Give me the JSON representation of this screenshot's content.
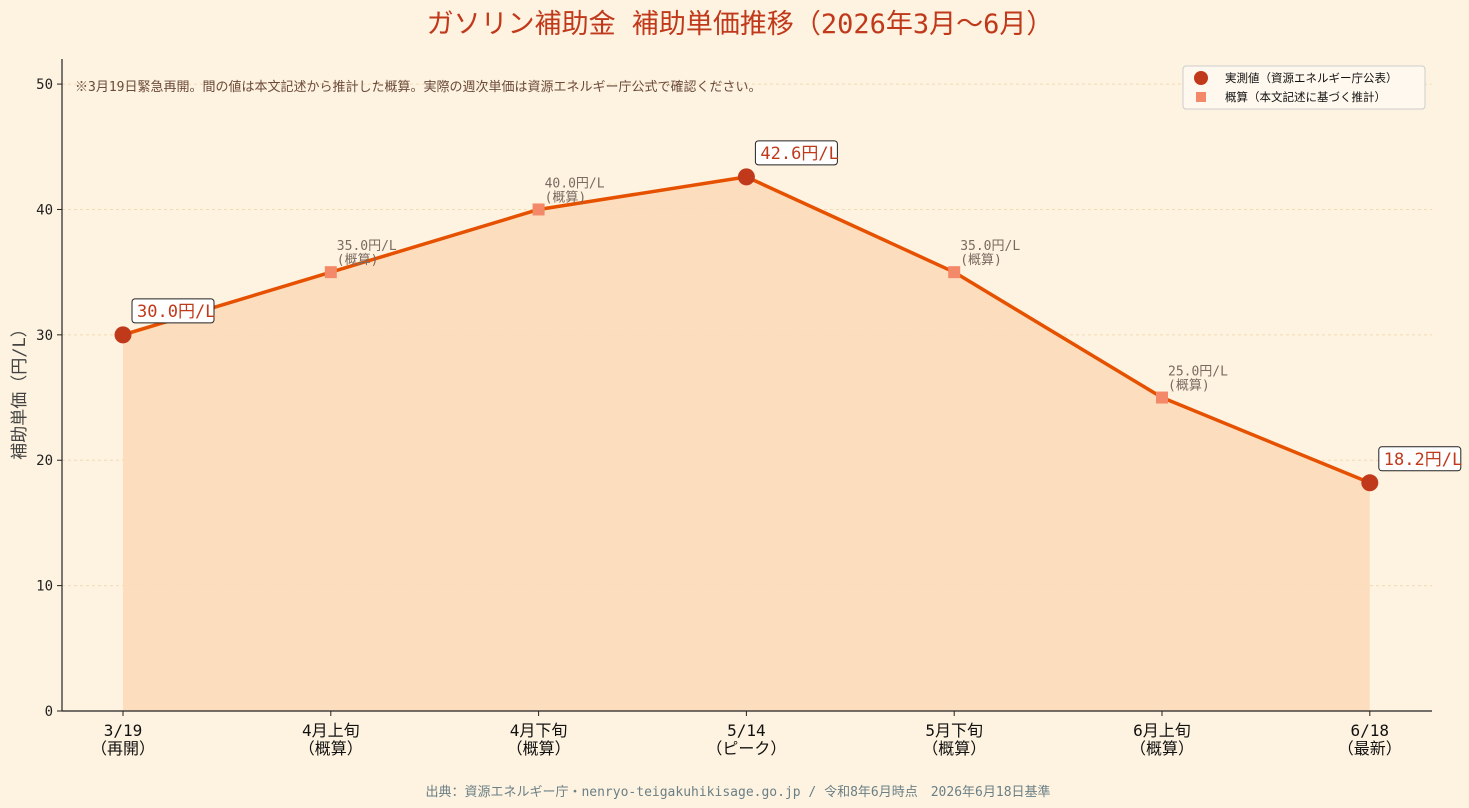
{
  "chart_data": {
    "type": "line",
    "title": "ガソリン補助金 補助単価推移（2026年3月～6月）",
    "ylabel": "補助単価（円/L）",
    "xlabel": "",
    "ylim": [
      0,
      52
    ],
    "yticks": [
      "0",
      "10",
      "20",
      "30",
      "40",
      "50"
    ],
    "grid": "horizontal dotted",
    "categories": [
      [
        "3/19",
        "（再開）"
      ],
      [
        "4月上旬",
        "（概算）"
      ],
      [
        "4月下旬",
        "（概算）"
      ],
      [
        "5/14",
        "（ピーク）"
      ],
      [
        "5月下旬",
        "（概算）"
      ],
      [
        "6月上旬",
        "（概算）"
      ],
      [
        "6/18",
        "（最新）"
      ]
    ],
    "values": [
      30.0,
      35.0,
      40.0,
      42.6,
      35.0,
      25.0,
      18.2
    ],
    "point_kinds": [
      "actual",
      "estimate",
      "estimate",
      "actual",
      "estimate",
      "estimate",
      "actual"
    ],
    "point_labels": [
      [
        "30.0円/L"
      ],
      [
        "35.0円/L",
        "(概算)"
      ],
      [
        "40.0円/L",
        "(概算)"
      ],
      [
        "42.6円/L"
      ],
      [
        "35.0円/L",
        "(概算)"
      ],
      [
        "25.0円/L",
        "(概算)"
      ],
      [
        "18.2円/L"
      ]
    ],
    "legend": {
      "placement": "top-right",
      "entries": [
        {
          "label": "実測値（資源エネルギー庁公表）",
          "marker": "circle",
          "color": "#c0391b"
        },
        {
          "label": "概算（本文記述に基づく推計）",
          "marker": "square",
          "color": "#f4896a"
        }
      ]
    },
    "annotation": "※3月19日緊急再開。間の値は本文記述から推計した概算。実際の週次単価は資源エネルギー庁公式で確認ください。",
    "source": "出典：資源エネルギー庁・nenryo-teigakuhikisage.go.jp / 令和8年6月時点　2026年6月18日基準",
    "colors": {
      "line": "#e65100",
      "fill": "#fcd9b8",
      "actual_marker": "#c0391b",
      "estimate_marker": "#f4896a",
      "background": "#fef3e0"
    }
  }
}
